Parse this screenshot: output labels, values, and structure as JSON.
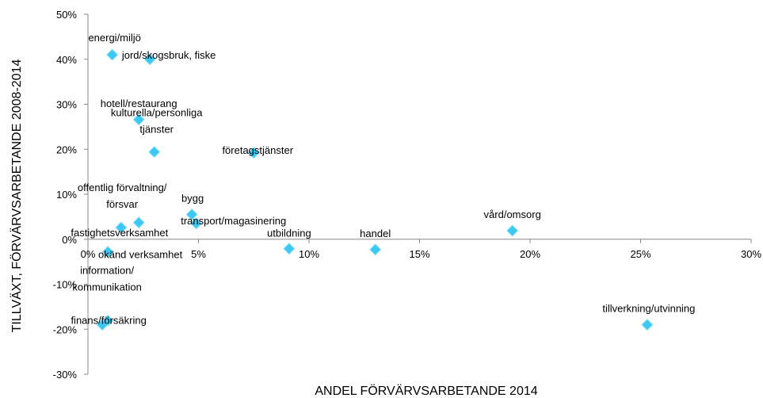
{
  "chart_data": {
    "type": "scatter",
    "x_label": "ANDEL FÖRVÄRVSARBETANDE 2014",
    "y_label": "TILLVÄXT, FÖRVÄRVSARBETANDE 2008-2014",
    "color": "#3cc8f2",
    "labels": [
      [
        "energi/miljö"
      ],
      [
        "jord/skogsbruk, fiske"
      ],
      [
        "hotell/restaurang"
      ],
      [
        "kulturella/personliga",
        "tjänster"
      ],
      [
        "företagstjänster"
      ],
      [
        "bygg"
      ],
      [
        "transport/magasinering"
      ],
      [
        "offentlig förvaltning/",
        "försvar"
      ],
      [
        "fastighetsverksamhet"
      ],
      [
        "okänd verksamhet"
      ],
      [
        "utbildning"
      ],
      [
        "handel"
      ],
      [
        "vård/omsorg"
      ],
      [
        "tillverkning/utvinning"
      ],
      [
        "information/",
        "kommunikation"
      ],
      [
        "finans/försäkring"
      ]
    ],
    "x": [
      1.1,
      2.8,
      2.3,
      3.0,
      7.5,
      4.7,
      4.9,
      2.3,
      1.5,
      0.9,
      9.1,
      13.0,
      19.2,
      25.3,
      0.9,
      0.65
    ],
    "y": [
      41,
      40,
      26.6,
      19.4,
      19.2,
      5.5,
      3.5,
      3.7,
      2.6,
      -2.8,
      -2.1,
      -2.3,
      1.9,
      -19,
      -18.1,
      -19
    ],
    "xlim": [
      0,
      30
    ],
    "ylim": [
      -30,
      50
    ],
    "xticks": [
      {
        "value": 0,
        "label": "0%"
      },
      {
        "value": 5,
        "label": "5%"
      },
      {
        "value": 10,
        "label": "10%"
      },
      {
        "value": 15,
        "label": "15%"
      },
      {
        "value": 20,
        "label": "20%"
      },
      {
        "value": 25,
        "label": "25%"
      },
      {
        "value": 30,
        "label": "30%"
      }
    ],
    "yticks": [
      {
        "value": -30,
        "label": "-30%"
      },
      {
        "value": -20,
        "label": "-20%"
      },
      {
        "value": -10,
        "label": "-10%"
      },
      {
        "value": 0,
        "label": "0%"
      },
      {
        "value": 10,
        "label": "10%"
      },
      {
        "value": 20,
        "label": "20%"
      },
      {
        "value": 30,
        "label": "30%"
      },
      {
        "value": 40,
        "label": "40%"
      },
      {
        "value": 50,
        "label": "50%"
      }
    ],
    "grid": false
  }
}
